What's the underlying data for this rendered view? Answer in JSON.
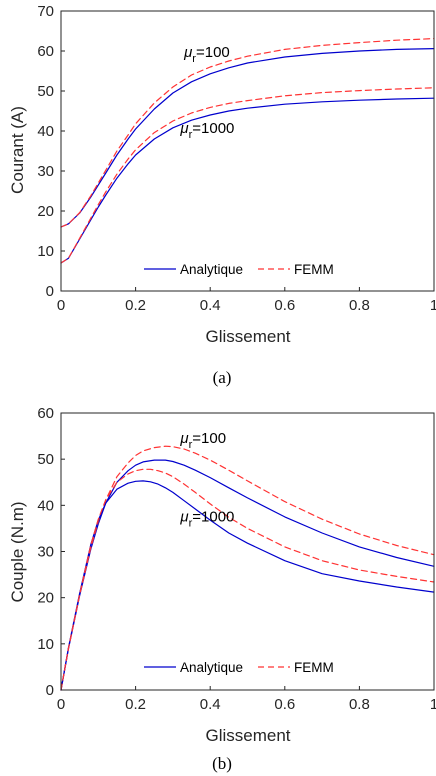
{
  "chart_data": [
    {
      "type": "line",
      "caption": "(a)",
      "xlabel": "Glissement",
      "ylabel": "Courant (A)",
      "xlim": [
        0,
        1
      ],
      "ylim": [
        0,
        70
      ],
      "xticks": [
        "0",
        "0.2",
        "0.4",
        "0.6",
        "0.8",
        "1"
      ],
      "yticks": [
        "0",
        "10",
        "20",
        "30",
        "40",
        "50",
        "60",
        "70"
      ],
      "legend": {
        "position": "bottom-center",
        "entries": [
          "Analytique",
          "FEMM"
        ]
      },
      "annotations": [
        {
          "symbol": "μ",
          "sub": "r",
          "text": "=100",
          "at": [
            0.33,
            58.5
          ]
        },
        {
          "symbol": "μ",
          "sub": "r",
          "text": "=1000",
          "at": [
            0.32,
            39.5
          ]
        }
      ],
      "series": [
        {
          "name": "Analytique",
          "mu_r": "100",
          "color": "#0000cd",
          "dash": false,
          "x": [
            0,
            0.02,
            0.05,
            0.08,
            0.1,
            0.12,
            0.15,
            0.18,
            0.2,
            0.25,
            0.3,
            0.35,
            0.4,
            0.45,
            0.5,
            0.6,
            0.7,
            0.8,
            0.9,
            1.0
          ],
          "y": [
            16.0,
            16.8,
            19.5,
            23.5,
            26.5,
            29.5,
            34.0,
            38.0,
            40.5,
            45.5,
            49.5,
            52.3,
            54.3,
            55.8,
            57.0,
            58.5,
            59.4,
            60.0,
            60.4,
            60.6
          ]
        },
        {
          "name": "FEMM",
          "mu_r": "100",
          "color": "#ff3333",
          "dash": true,
          "x": [
            0,
            0.02,
            0.05,
            0.08,
            0.1,
            0.12,
            0.15,
            0.18,
            0.2,
            0.25,
            0.3,
            0.35,
            0.4,
            0.45,
            0.5,
            0.6,
            0.7,
            0.8,
            0.9,
            1.0
          ],
          "y": [
            16.0,
            16.8,
            19.6,
            23.8,
            27.0,
            30.2,
            35.0,
            39.0,
            41.8,
            47.0,
            51.0,
            54.0,
            56.0,
            57.5,
            58.7,
            60.4,
            61.4,
            62.1,
            62.7,
            63.1
          ]
        },
        {
          "name": "Analytique",
          "mu_r": "1000",
          "color": "#0000cd",
          "dash": false,
          "x": [
            0,
            0.02,
            0.05,
            0.08,
            0.1,
            0.12,
            0.15,
            0.18,
            0.2,
            0.25,
            0.3,
            0.35,
            0.4,
            0.45,
            0.5,
            0.6,
            0.7,
            0.8,
            0.9,
            1.0
          ],
          "y": [
            7.0,
            8.2,
            13.0,
            17.8,
            21.0,
            24.0,
            28.2,
            31.8,
            34.0,
            38.0,
            40.8,
            42.7,
            44.0,
            45.0,
            45.7,
            46.7,
            47.3,
            47.7,
            48.0,
            48.2
          ]
        },
        {
          "name": "FEMM",
          "mu_r": "1000",
          "color": "#ff3333",
          "dash": true,
          "x": [
            0,
            0.02,
            0.05,
            0.08,
            0.1,
            0.12,
            0.15,
            0.18,
            0.2,
            0.25,
            0.3,
            0.35,
            0.4,
            0.45,
            0.5,
            0.6,
            0.7,
            0.8,
            0.9,
            1.0
          ],
          "y": [
            7.0,
            8.2,
            13.2,
            18.2,
            21.6,
            24.8,
            29.2,
            33.0,
            35.3,
            39.6,
            42.5,
            44.5,
            45.9,
            46.9,
            47.6,
            48.8,
            49.6,
            50.1,
            50.5,
            50.8
          ]
        }
      ]
    },
    {
      "type": "line",
      "caption": "(b)",
      "xlabel": "Glissement",
      "ylabel": "Couple (N.m)",
      "xlim": [
        0,
        1
      ],
      "ylim": [
        0,
        60
      ],
      "xticks": [
        "0",
        "0.2",
        "0.4",
        "0.6",
        "0.8",
        "1"
      ],
      "yticks": [
        "0",
        "10",
        "20",
        "30",
        "40",
        "50",
        "60"
      ],
      "legend": {
        "position": "bottom-center",
        "entries": [
          "Analytique",
          "FEMM"
        ]
      },
      "annotations": [
        {
          "symbol": "μ",
          "sub": "r",
          "text": "=100",
          "at": [
            0.32,
            53.5
          ]
        },
        {
          "symbol": "μ",
          "sub": "r",
          "text": "=1000",
          "at": [
            0.32,
            36.5
          ]
        }
      ],
      "series": [
        {
          "name": "Analytique",
          "mu_r": "100",
          "color": "#0000cd",
          "dash": false,
          "x": [
            0,
            0.02,
            0.05,
            0.08,
            0.1,
            0.12,
            0.15,
            0.18,
            0.2,
            0.22,
            0.25,
            0.28,
            0.3,
            0.33,
            0.36,
            0.4,
            0.45,
            0.5,
            0.6,
            0.7,
            0.8,
            0.9,
            1.0
          ],
          "y": [
            0,
            9.0,
            20.5,
            30.5,
            36.0,
            40.5,
            45.0,
            47.5,
            48.7,
            49.4,
            49.8,
            49.8,
            49.5,
            48.7,
            47.6,
            46.0,
            43.8,
            41.6,
            37.5,
            34.0,
            31.0,
            28.7,
            26.8
          ]
        },
        {
          "name": "FEMM",
          "mu_r": "100",
          "color": "#ff3333",
          "dash": true,
          "x": [
            0,
            0.02,
            0.05,
            0.08,
            0.1,
            0.12,
            0.15,
            0.18,
            0.2,
            0.22,
            0.25,
            0.28,
            0.3,
            0.33,
            0.36,
            0.4,
            0.45,
            0.5,
            0.6,
            0.7,
            0.8,
            0.9,
            1.0
          ],
          "y": [
            0,
            9.0,
            20.6,
            30.8,
            36.5,
            41.2,
            46.2,
            49.2,
            50.8,
            51.8,
            52.5,
            52.8,
            52.7,
            52.2,
            51.3,
            49.8,
            47.6,
            45.3,
            40.8,
            37.0,
            33.8,
            31.3,
            29.3
          ]
        },
        {
          "name": "Analytique",
          "mu_r": "1000",
          "color": "#0000cd",
          "dash": false,
          "x": [
            0,
            0.02,
            0.05,
            0.08,
            0.1,
            0.12,
            0.15,
            0.18,
            0.2,
            0.22,
            0.24,
            0.26,
            0.28,
            0.3,
            0.33,
            0.36,
            0.4,
            0.45,
            0.5,
            0.6,
            0.7,
            0.8,
            0.9,
            1.0
          ],
          "y": [
            0,
            9.2,
            21.0,
            31.5,
            36.8,
            40.5,
            43.5,
            44.8,
            45.2,
            45.3,
            45.1,
            44.6,
            43.8,
            42.8,
            41.0,
            39.2,
            36.8,
            34.0,
            31.8,
            28.0,
            25.2,
            23.6,
            22.3,
            21.2
          ]
        },
        {
          "name": "FEMM",
          "mu_r": "1000",
          "color": "#ff3333",
          "dash": true,
          "x": [
            0,
            0.02,
            0.05,
            0.08,
            0.1,
            0.12,
            0.15,
            0.18,
            0.2,
            0.22,
            0.24,
            0.26,
            0.28,
            0.3,
            0.33,
            0.36,
            0.4,
            0.45,
            0.5,
            0.6,
            0.7,
            0.8,
            0.9,
            1.0
          ],
          "y": [
            0,
            9.1,
            20.8,
            31.4,
            37.0,
            41.2,
            45.0,
            46.8,
            47.5,
            47.8,
            47.8,
            47.5,
            47.0,
            46.2,
            44.6,
            42.8,
            40.3,
            37.4,
            35.0,
            31.0,
            28.0,
            26.0,
            24.6,
            23.4
          ]
        }
      ]
    }
  ]
}
